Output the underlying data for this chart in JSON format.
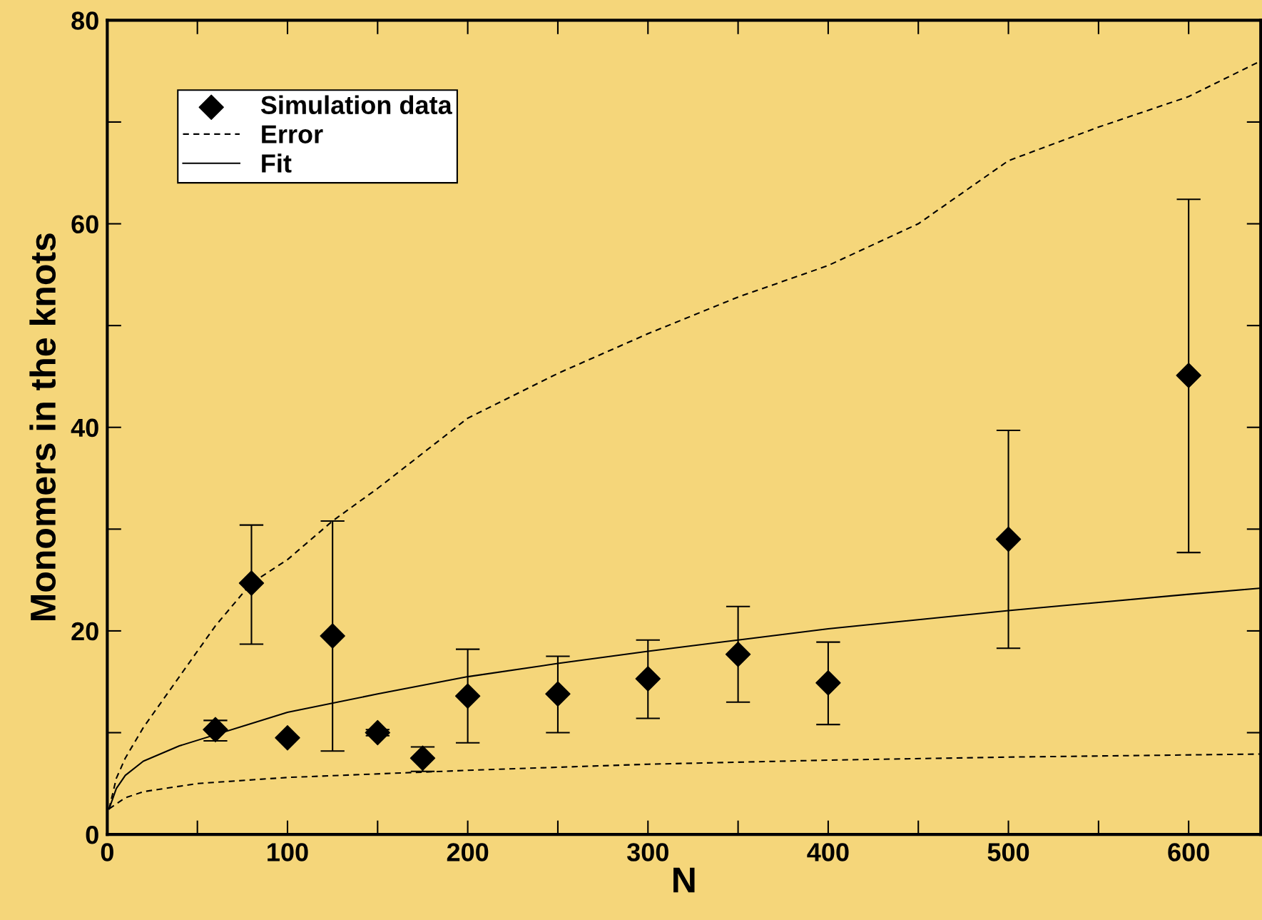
{
  "chart_data": {
    "type": "scatter",
    "xlabel": "N",
    "ylabel": "Monomers in the knots",
    "xlim": [
      0,
      640
    ],
    "ylim": [
      0,
      80
    ],
    "xticks": [
      0,
      100,
      200,
      300,
      400,
      500,
      600
    ],
    "yticks": [
      0,
      20,
      40,
      60,
      80
    ],
    "grid": false,
    "legend": "top left",
    "series": [
      {
        "name": "Simulation data",
        "color": "#000000",
        "marker": "diamond",
        "x": [
          60,
          80,
          100,
          125,
          150,
          175,
          200,
          250,
          300,
          350,
          400,
          500,
          600
        ],
        "values": [
          10.3,
          24.7,
          9.5,
          19.5,
          10.0,
          7.5,
          13.6,
          13.8,
          15.3,
          17.7,
          14.9,
          29.0,
          45.1
        ],
        "errors": [
          [
            9.2,
            11.2
          ],
          [
            18.7,
            30.4
          ],
          null,
          [
            8.2,
            30.8
          ],
          [
            9.7,
            10.3
          ],
          [
            6.2,
            8.6
          ],
          [
            9.0,
            18.2
          ],
          [
            10.0,
            17.5
          ],
          [
            11.4,
            19.1
          ],
          [
            13.0,
            22.4
          ],
          [
            10.8,
            18.9
          ],
          [
            18.3,
            39.7
          ],
          [
            27.7,
            62.4
          ]
        ]
      },
      {
        "name": "Error",
        "type": "line",
        "color": "#000000",
        "line_style": "dashed",
        "x": [
          1,
          5,
          10,
          20,
          40,
          60,
          80,
          100,
          125,
          150,
          200,
          250,
          300,
          350,
          400,
          450,
          500,
          550,
          600,
          640
        ],
        "values": [
          2.5,
          5.5,
          7.5,
          10.5,
          15.5,
          20.5,
          24.7,
          27.0,
          30.8,
          34.0,
          40.9,
          45.3,
          49.2,
          52.8,
          55.9,
          60.0,
          66.2,
          69.5,
          72.5,
          76.0
        ]
      },
      {
        "type": "line",
        "color": "#000000",
        "line_style": "dashed",
        "x": [
          1,
          5,
          10,
          20,
          50,
          100,
          200,
          300,
          400,
          500,
          640
        ],
        "values": [
          2.5,
          3.0,
          3.6,
          4.2,
          5.0,
          5.6,
          6.3,
          6.9,
          7.3,
          7.6,
          7.9
        ]
      },
      {
        "name": "Fit",
        "type": "line",
        "color": "#000000",
        "line_style": "solid",
        "x": [
          1,
          5,
          10,
          20,
          40,
          60,
          100,
          150,
          200,
          250,
          300,
          350,
          400,
          500,
          600,
          640
        ],
        "values": [
          2.5,
          4.5,
          5.8,
          7.2,
          8.7,
          9.8,
          12.0,
          13.8,
          15.5,
          16.8,
          18.0,
          19.1,
          20.2,
          22.0,
          23.6,
          24.2
        ]
      }
    ]
  }
}
